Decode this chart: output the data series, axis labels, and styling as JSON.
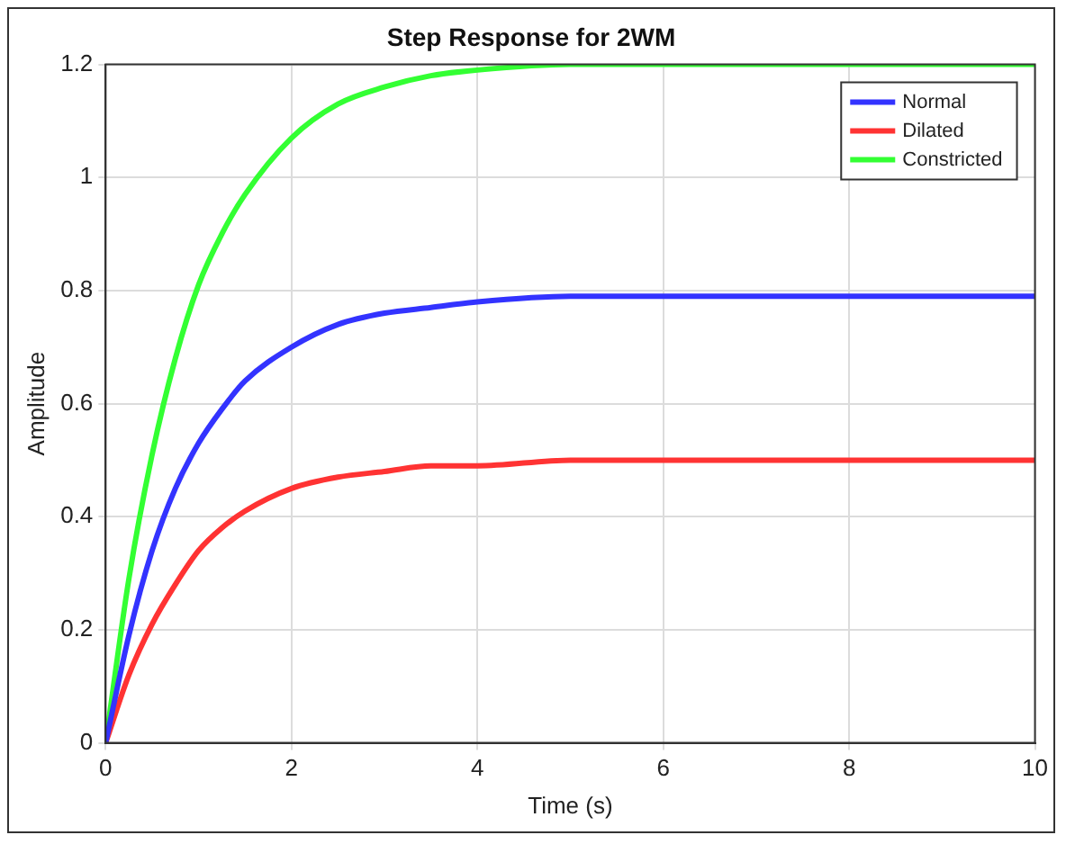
{
  "chart_data": {
    "type": "line",
    "title": "Step Response for 2WM",
    "xlabel": "Time (s)",
    "ylabel": "Amplitude",
    "x": [
      0,
      0.25,
      0.5,
      0.75,
      1,
      1.25,
      1.5,
      2,
      2.5,
      3,
      3.5,
      4,
      5,
      6,
      7,
      8,
      10
    ],
    "series": [
      {
        "name": "Normal",
        "color": "#3333ff",
        "values": [
          0,
          0.19,
          0.34,
          0.45,
          0.53,
          0.59,
          0.64,
          0.7,
          0.74,
          0.76,
          0.77,
          0.78,
          0.79,
          0.79,
          0.79,
          0.79,
          0.79
        ]
      },
      {
        "name": "Dilated",
        "color": "#ff3333",
        "values": [
          0,
          0.12,
          0.21,
          0.28,
          0.34,
          0.38,
          0.41,
          0.45,
          0.47,
          0.48,
          0.49,
          0.49,
          0.5,
          0.5,
          0.5,
          0.5,
          0.5
        ]
      },
      {
        "name": "Constricted",
        "color": "#33ff33",
        "values": [
          0,
          0.29,
          0.51,
          0.68,
          0.81,
          0.9,
          0.97,
          1.07,
          1.13,
          1.16,
          1.18,
          1.19,
          1.2,
          1.2,
          1.2,
          1.2,
          1.2
        ]
      }
    ],
    "xlim": [
      0,
      10
    ],
    "xticks": [
      0,
      2,
      4,
      6,
      8,
      10
    ],
    "ylim": [
      0,
      1.2
    ],
    "yticks": [
      0,
      0.2,
      0.4,
      0.6,
      0.8,
      1,
      1.2
    ],
    "grid": true,
    "legend": "top right",
    "marker": "none",
    "line_style": "solid"
  }
}
